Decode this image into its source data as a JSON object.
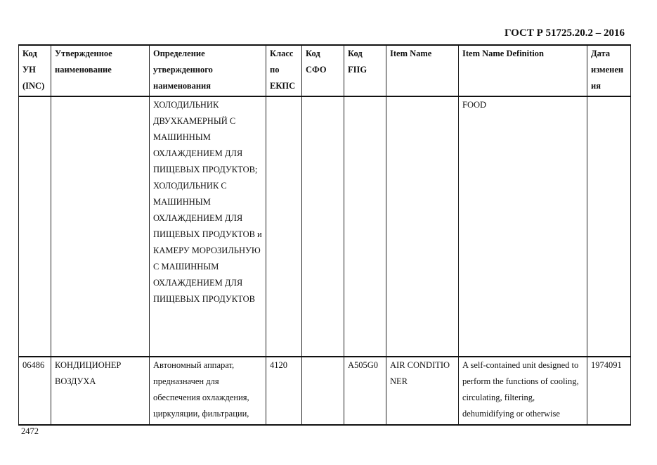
{
  "header": {
    "standard": "ГОСТ Р 51725.20.2 – 2016"
  },
  "table": {
    "columns": [
      "Код\nУН\n(INC)",
      "Утвержденное\nнаименование",
      "Определение\nутвержденного\nнаименования",
      "Класс\nпо\nЕКПС",
      "Код\nСФО",
      "Код\nFIIG",
      "Item Name",
      "Item Name Definition",
      "Дата\nизменен\nия"
    ],
    "rows": [
      [
        "",
        "",
        "ХОЛОДИЛЬНИК ДВУХКАМЕРНЫЙ С МАШИННЫМ ОХЛАЖДЕНИЕМ ДЛЯ ПИЩЕВЫХ ПРОДУКТОВ; ХОЛОДИЛЬНИК С МАШИННЫМ ОХЛАЖДЕНИЕМ ДЛЯ ПИЩЕВЫХ ПРОДУКТОВ и КАМЕРУ МОРОЗИЛЬНУЮ С МАШИННЫМ ОХЛАЖДЕНИЕМ ДЛЯ ПИЩЕВЫХ ПРОДУКТОВ",
        "",
        "",
        "",
        "",
        "FOOD",
        ""
      ],
      [
        "06486",
        "КОНДИЦИОНЕР ВОЗДУХА",
        "Автономный аппарат, предназначен для обеспечения охлаждения, циркуляции, фильтрации,",
        "4120",
        "",
        "A505G0",
        "AIR CONDITIONER",
        "A self-contained unit designed to perform the functions of cooling, circulating, filtering, dehumidifying or otherwise",
        "1974091"
      ]
    ]
  },
  "footer": {
    "page_number": "2472"
  }
}
